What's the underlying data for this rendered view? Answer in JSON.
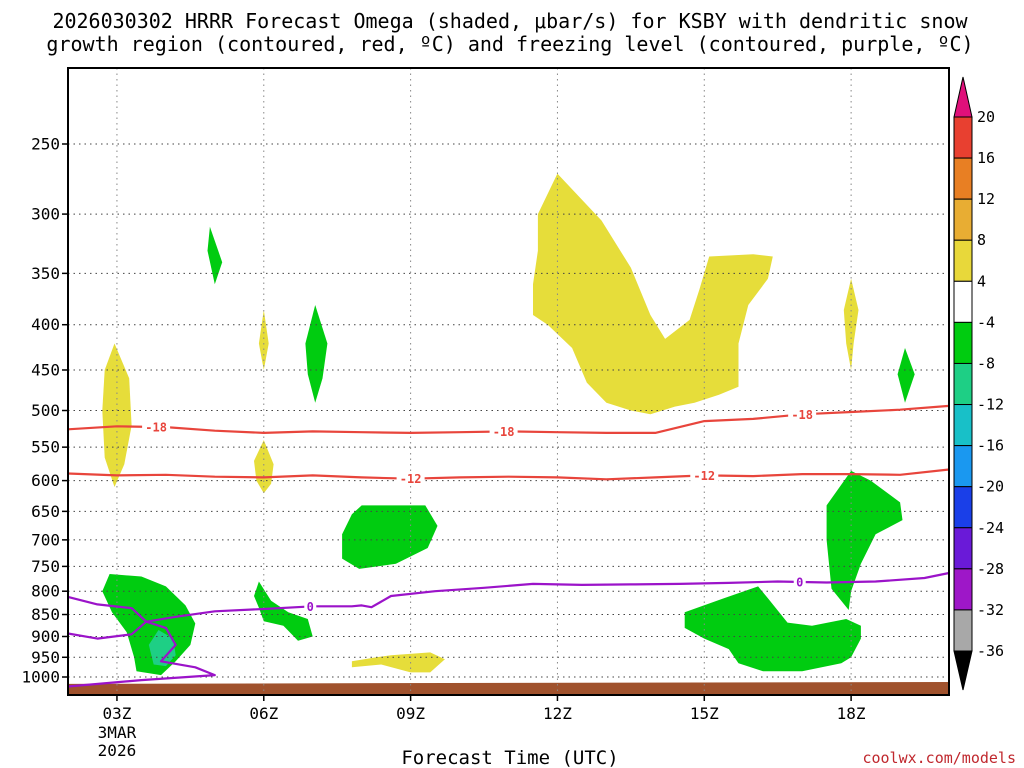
{
  "chart_data": {
    "type": "heatmap",
    "title_line1": "2026030302 HRRR Forecast Omega (shaded, μbar/s) for KSBY with dendritic snow",
    "title_line2": "growth region (contoured, red, ºC) and freezing level (contoured, purple, ºC)",
    "xlabel": "Forecast Time (UTC)",
    "credit": "coolwx.com/models",
    "x_ticks": [
      {
        "hour": 3,
        "label": "03Z",
        "sub1": "3MAR",
        "sub2": "2026"
      },
      {
        "hour": 6,
        "label": "06Z"
      },
      {
        "hour": 9,
        "label": "09Z"
      },
      {
        "hour": 12,
        "label": "12Z"
      },
      {
        "hour": 15,
        "label": "15Z"
      },
      {
        "hour": 18,
        "label": "18Z"
      }
    ],
    "xlim": [
      2,
      20
    ],
    "y_ticks": [
      250,
      300,
      350,
      400,
      450,
      500,
      550,
      600,
      650,
      700,
      750,
      800,
      850,
      900,
      950,
      1000
    ],
    "ylim": [
      1025,
      200
    ],
    "y_scale": "log",
    "colorbar": {
      "labels": [
        "20",
        "16",
        "12",
        "8",
        "4",
        "-4",
        "-8",
        "-12",
        "-16",
        "-20",
        "-24",
        "-28",
        "-32",
        "-36"
      ],
      "top_color": "#e0107a",
      "bottom_color": "#000000",
      "colors": [
        "#e84030",
        "#e87f23",
        "#e8ad33",
        "#e8d83a",
        "#ffffff",
        "#00cc10",
        "#1ecf85",
        "#18c0c8",
        "#1a98f0",
        "#1a3fe8",
        "#6a1ad8",
        "#9e17c8",
        "#a8a8a8"
      ]
    },
    "contours": [
      {
        "name": "red-18",
        "label": "-18",
        "color": "#e8453c",
        "points": [
          [
            2,
            525
          ],
          [
            3,
            521
          ],
          [
            4,
            522
          ],
          [
            5,
            527
          ],
          [
            6,
            530
          ],
          [
            7,
            528
          ],
          [
            8,
            529
          ],
          [
            9,
            530
          ],
          [
            10,
            529
          ],
          [
            11,
            528
          ],
          [
            12,
            529
          ],
          [
            13,
            530
          ],
          [
            14,
            530
          ],
          [
            15,
            514
          ],
          [
            16,
            511
          ],
          [
            17,
            505
          ],
          [
            18,
            502
          ],
          [
            19,
            499
          ],
          [
            20,
            494
          ]
        ],
        "label_at": [
          [
            3.8,
            522
          ],
          [
            10.9,
            528
          ],
          [
            17.0,
            505
          ]
        ]
      },
      {
        "name": "red-12",
        "label": "-12",
        "color": "#e8453c",
        "points": [
          [
            2,
            589
          ],
          [
            3,
            592
          ],
          [
            4,
            591
          ],
          [
            5,
            594
          ],
          [
            6,
            595
          ],
          [
            7,
            592
          ],
          [
            8,
            595
          ],
          [
            9,
            597
          ],
          [
            10,
            595
          ],
          [
            11,
            594
          ],
          [
            12,
            595
          ],
          [
            13,
            598
          ],
          [
            14,
            595
          ],
          [
            15,
            592
          ],
          [
            16,
            593
          ],
          [
            17,
            590
          ],
          [
            18,
            590
          ],
          [
            19,
            591
          ],
          [
            20,
            583
          ]
        ],
        "label_at": [
          [
            9.0,
            597
          ],
          [
            15.0,
            592
          ]
        ]
      },
      {
        "name": "purple-0",
        "label": "0",
        "color": "#9b13c9",
        "points": [
          [
            2,
            812
          ],
          [
            2.6,
            828
          ],
          [
            3.3,
            836
          ],
          [
            3.6,
            866
          ],
          [
            3.3,
            895
          ],
          [
            2.6,
            905
          ],
          [
            2,
            893
          ],
          [
            2.6,
            905
          ],
          [
            3.3,
            895
          ],
          [
            3.6,
            866
          ],
          [
            4.0,
            880
          ],
          [
            4.2,
            920
          ],
          [
            3.9,
            960
          ],
          [
            4.6,
            975
          ],
          [
            5.0,
            995
          ],
          [
            3.5,
            1008
          ],
          [
            2,
            1025
          ]
        ],
        "extra": [
          [
            3.6,
            866
          ],
          [
            4.2,
            855
          ],
          [
            5.0,
            843
          ],
          [
            6.0,
            838
          ],
          [
            7.0,
            832
          ],
          [
            7.8,
            832
          ],
          [
            8.0,
            830
          ],
          [
            8.2,
            834
          ],
          [
            8.6,
            810
          ],
          [
            9.5,
            800
          ],
          [
            10.5,
            793
          ],
          [
            11.5,
            785
          ],
          [
            12.5,
            787
          ],
          [
            13.5,
            786
          ],
          [
            14.5,
            785
          ],
          [
            15.5,
            783
          ],
          [
            16.5,
            780
          ],
          [
            17.5,
            782
          ],
          [
            18.5,
            780
          ],
          [
            19.5,
            773
          ],
          [
            20,
            763
          ]
        ],
        "label_at": [
          [
            6.95,
            832
          ],
          [
            16.95,
            781
          ]
        ]
      }
    ],
    "shaded_regions": [
      {
        "name": "yellow-upper-left",
        "color": "#e6dd3a",
        "points": [
          [
            2.95,
            420
          ],
          [
            3.25,
            460
          ],
          [
            3.3,
            520
          ],
          [
            3.15,
            575
          ],
          [
            2.95,
            610
          ],
          [
            2.75,
            565
          ],
          [
            2.7,
            500
          ],
          [
            2.75,
            450
          ]
        ]
      },
      {
        "name": "yellow-06z-upper",
        "color": "#e6dd3a",
        "points": [
          [
            6.0,
            385
          ],
          [
            6.1,
            420
          ],
          [
            6.0,
            450
          ],
          [
            5.9,
            420
          ]
        ]
      },
      {
        "name": "yellow-06z-lower",
        "color": "#e6dd3a",
        "points": [
          [
            6.0,
            540
          ],
          [
            6.2,
            575
          ],
          [
            6.15,
            605
          ],
          [
            6.0,
            620
          ],
          [
            5.85,
            600
          ],
          [
            5.8,
            570
          ]
        ]
      },
      {
        "name": "yellow-12z-big",
        "color": "#e6dd3a",
        "points": [
          [
            12.0,
            270
          ],
          [
            12.9,
            305
          ],
          [
            13.5,
            345
          ],
          [
            13.9,
            390
          ],
          [
            14.2,
            415
          ],
          [
            14.7,
            395
          ],
          [
            14.9,
            365
          ],
          [
            15.1,
            335
          ],
          [
            16.0,
            333
          ],
          [
            16.4,
            335
          ],
          [
            16.3,
            355
          ],
          [
            15.9,
            380
          ],
          [
            15.7,
            420
          ],
          [
            15.7,
            470
          ],
          [
            15.3,
            480
          ],
          [
            14.8,
            490
          ],
          [
            14.4,
            495
          ],
          [
            13.9,
            505
          ],
          [
            13.5,
            500
          ],
          [
            13.0,
            490
          ],
          [
            12.6,
            465
          ],
          [
            12.3,
            425
          ],
          [
            11.8,
            400
          ],
          [
            11.5,
            390
          ],
          [
            11.5,
            360
          ],
          [
            11.6,
            330
          ],
          [
            11.6,
            300
          ]
        ]
      },
      {
        "name": "yellow-18z-small",
        "color": "#e6dd3a",
        "points": [
          [
            18.0,
            355
          ],
          [
            18.15,
            385
          ],
          [
            18.05,
            420
          ],
          [
            18.0,
            450
          ],
          [
            17.9,
            420
          ],
          [
            17.85,
            385
          ]
        ]
      },
      {
        "name": "yellow-09z-low",
        "color": "#e6dd3a",
        "points": [
          [
            8.6,
            945
          ],
          [
            9.4,
            938
          ],
          [
            9.7,
            955
          ],
          [
            9.4,
            988
          ],
          [
            9.0,
            988
          ],
          [
            8.4,
            968
          ],
          [
            7.8,
            975
          ],
          [
            7.8,
            960
          ],
          [
            8.3,
            950
          ]
        ]
      },
      {
        "name": "green-05z-top",
        "color": "#00cc10",
        "points": [
          [
            4.9,
            310
          ],
          [
            5.15,
            340
          ],
          [
            5.0,
            360
          ],
          [
            4.85,
            330
          ]
        ]
      },
      {
        "name": "green-07z-mid",
        "color": "#00cc10",
        "points": [
          [
            7.05,
            380
          ],
          [
            7.3,
            420
          ],
          [
            7.2,
            460
          ],
          [
            7.05,
            490
          ],
          [
            6.9,
            455
          ],
          [
            6.85,
            420
          ]
        ]
      },
      {
        "name": "green-19z-mid",
        "color": "#00cc10",
        "points": [
          [
            19.1,
            425
          ],
          [
            19.3,
            455
          ],
          [
            19.1,
            490
          ],
          [
            18.95,
            455
          ]
        ]
      },
      {
        "name": "green-08z-mid",
        "color": "#00cc10",
        "points": [
          [
            8.0,
            640
          ],
          [
            9.3,
            640
          ],
          [
            9.55,
            675
          ],
          [
            9.35,
            715
          ],
          [
            8.7,
            745
          ],
          [
            7.95,
            755
          ],
          [
            7.6,
            735
          ],
          [
            7.6,
            690
          ],
          [
            7.8,
            655
          ]
        ]
      },
      {
        "name": "green-18z-mid",
        "color": "#00cc10",
        "points": [
          [
            18.0,
            585
          ],
          [
            18.4,
            600
          ],
          [
            19.0,
            635
          ],
          [
            19.05,
            665
          ],
          [
            18.5,
            690
          ],
          [
            18.2,
            745
          ],
          [
            18.0,
            800
          ],
          [
            17.95,
            840
          ],
          [
            17.6,
            795
          ],
          [
            17.5,
            700
          ],
          [
            17.5,
            640
          ]
        ]
      },
      {
        "name": "green-03z-low",
        "color": "#00cc10",
        "points": [
          [
            2.85,
            765
          ],
          [
            3.5,
            770
          ],
          [
            4.0,
            790
          ],
          [
            4.4,
            830
          ],
          [
            4.6,
            870
          ],
          [
            4.5,
            920
          ],
          [
            4.2,
            960
          ],
          [
            3.9,
            995
          ],
          [
            3.4,
            985
          ],
          [
            3.35,
            950
          ],
          [
            3.2,
            890
          ],
          [
            2.9,
            845
          ],
          [
            2.7,
            800
          ]
        ]
      },
      {
        "name": "teal-03z-core",
        "color": "#1ecf85",
        "points": [
          [
            3.85,
            885
          ],
          [
            4.15,
            905
          ],
          [
            4.2,
            945
          ],
          [
            4.0,
            972
          ],
          [
            3.75,
            968
          ],
          [
            3.65,
            920
          ]
        ]
      },
      {
        "name": "green-06z-low",
        "color": "#00cc10",
        "points": [
          [
            5.9,
            780
          ],
          [
            6.15,
            820
          ],
          [
            6.5,
            845
          ],
          [
            6.9,
            860
          ],
          [
            7.0,
            900
          ],
          [
            6.7,
            910
          ],
          [
            6.4,
            875
          ],
          [
            6.0,
            865
          ],
          [
            5.9,
            835
          ],
          [
            5.8,
            810
          ]
        ]
      },
      {
        "name": "green-15z-low",
        "color": "#00cc10",
        "points": [
          [
            14.6,
            845
          ],
          [
            15.4,
            815
          ],
          [
            16.1,
            790
          ],
          [
            16.3,
            815
          ],
          [
            16.7,
            868
          ],
          [
            17.2,
            875
          ],
          [
            17.9,
            860
          ],
          [
            18.2,
            875
          ],
          [
            18.2,
            905
          ],
          [
            18.0,
            950
          ],
          [
            17.8,
            965
          ],
          [
            17.0,
            985
          ],
          [
            16.2,
            985
          ],
          [
            15.7,
            965
          ],
          [
            15.5,
            930
          ],
          [
            15.0,
            905
          ],
          [
            14.6,
            880
          ]
        ]
      }
    ],
    "terrain": {
      "color": "#a0522d",
      "top_left": 1018,
      "top_right": 1013
    }
  }
}
